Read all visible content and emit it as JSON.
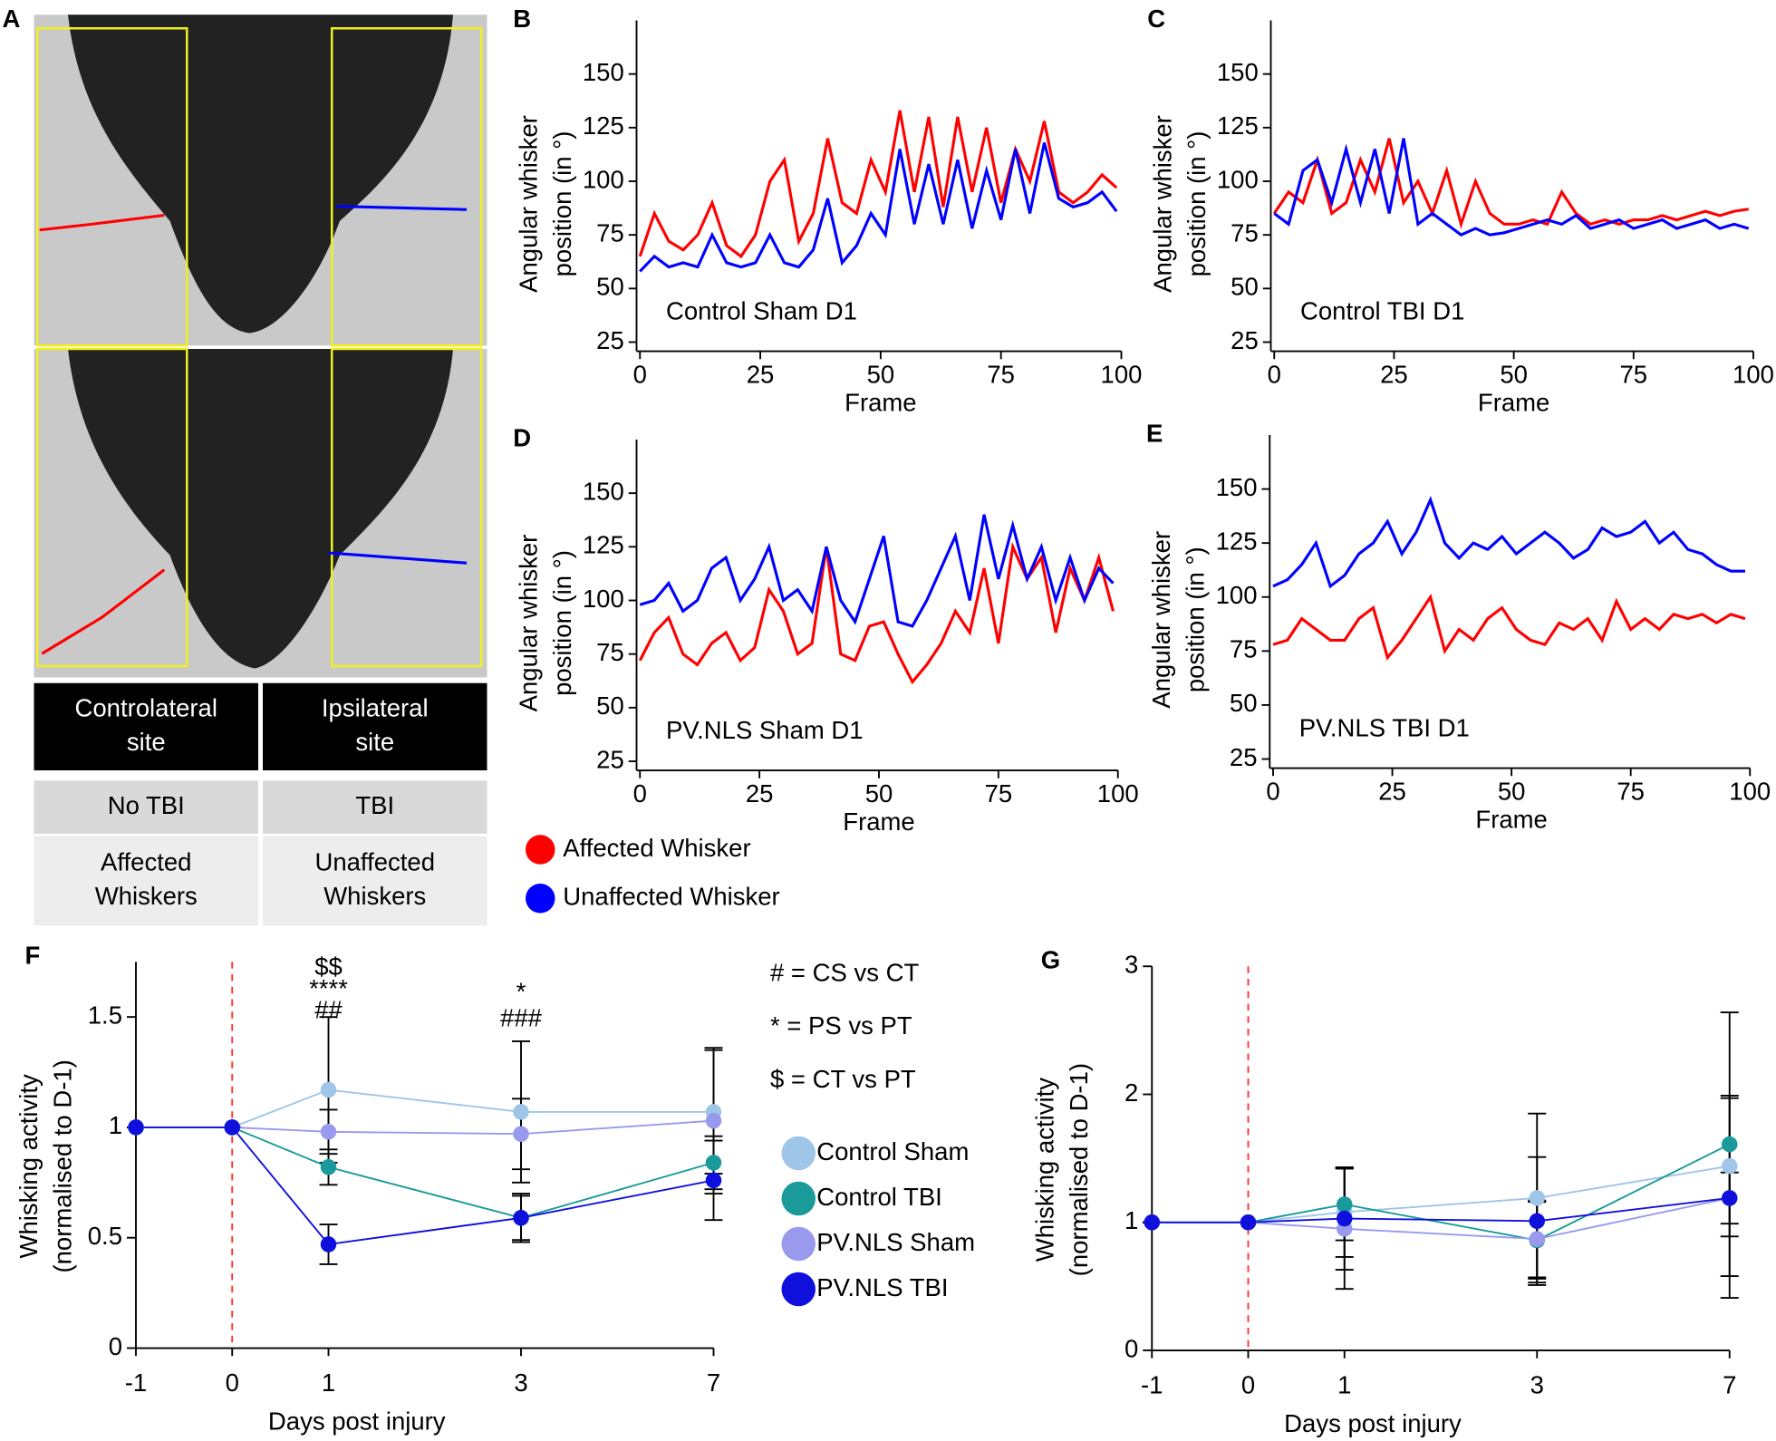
{
  "panel_a": {
    "label": "A",
    "table": {
      "rows": [
        [
          [
            "Controlateral",
            "site"
          ],
          [
            "Ipsilateral",
            "site"
          ]
        ],
        [
          [
            "No TBI"
          ],
          [
            "TBI"
          ]
        ],
        [
          [
            "Affected",
            "Whiskers"
          ],
          [
            "Unaffected",
            "Whiskers"
          ]
        ]
      ]
    }
  },
  "chart_data": [
    {
      "type": "line",
      "panel": "B",
      "annotation": "Control Sham D1",
      "xlabel": "Frame",
      "ylabel": [
        "Angular whisker",
        "position (in °)"
      ],
      "x": [
        0,
        3,
        6,
        9,
        12,
        15,
        18,
        21,
        24,
        27,
        30,
        33,
        36,
        39,
        42,
        45,
        48,
        51,
        54,
        57,
        60,
        63,
        66,
        69,
        72,
        75,
        78,
        81,
        84,
        87,
        90,
        93,
        96,
        99
      ],
      "xlim": [
        0,
        100
      ],
      "xticks": [
        0,
        25,
        50,
        75,
        100
      ],
      "ylim": [
        25,
        175
      ],
      "yticks": [
        25,
        50,
        75,
        100,
        125,
        150
      ],
      "series": [
        {
          "color": "#ff0000",
          "values": [
            65,
            85,
            72,
            68,
            75,
            90,
            70,
            65,
            75,
            100,
            110,
            72,
            85,
            120,
            90,
            85,
            110,
            95,
            133,
            95,
            130,
            88,
            130,
            95,
            125,
            90,
            115,
            100,
            128,
            95,
            90,
            95,
            103,
            97
          ]
        },
        {
          "color": "#0000ff",
          "values": [
            58,
            65,
            60,
            62,
            60,
            75,
            62,
            60,
            62,
            75,
            62,
            60,
            68,
            92,
            62,
            70,
            85,
            75,
            115,
            80,
            108,
            80,
            110,
            78,
            105,
            82,
            115,
            85,
            118,
            92,
            88,
            90,
            95,
            86
          ]
        }
      ]
    },
    {
      "type": "line",
      "panel": "C",
      "annotation": "Control TBI D1",
      "xlabel": "Frame",
      "ylabel": [
        "Angular whisker",
        "position (in °)"
      ],
      "x": [
        0,
        3,
        6,
        9,
        12,
        15,
        18,
        21,
        24,
        27,
        30,
        33,
        36,
        39,
        42,
        45,
        48,
        51,
        54,
        57,
        60,
        63,
        66,
        69,
        72,
        75,
        78,
        81,
        84,
        87,
        90,
        93,
        96,
        99
      ],
      "xlim": [
        0,
        100
      ],
      "xticks": [
        0,
        25,
        50,
        75,
        100
      ],
      "ylim": [
        25,
        175
      ],
      "yticks": [
        25,
        50,
        75,
        100,
        125,
        150
      ],
      "series": [
        {
          "color": "#ff0000",
          "values": [
            85,
            95,
            90,
            110,
            85,
            90,
            110,
            95,
            120,
            90,
            100,
            85,
            105,
            80,
            100,
            85,
            80,
            80,
            82,
            80,
            95,
            85,
            80,
            82,
            80,
            82,
            82,
            84,
            82,
            84,
            86,
            84,
            86,
            87
          ]
        },
        {
          "color": "#0000ff",
          "values": [
            85,
            80,
            105,
            110,
            90,
            115,
            90,
            115,
            85,
            120,
            80,
            85,
            80,
            75,
            78,
            75,
            76,
            78,
            80,
            82,
            80,
            84,
            78,
            80,
            82,
            78,
            80,
            82,
            78,
            80,
            82,
            78,
            80,
            78
          ]
        }
      ]
    },
    {
      "type": "line",
      "panel": "D",
      "annotation": "PV.NLS Sham D1",
      "xlabel": "Frame",
      "ylabel": [
        "Angular whisker",
        "position (in °)"
      ],
      "x": [
        0,
        3,
        6,
        9,
        12,
        15,
        18,
        21,
        24,
        27,
        30,
        33,
        36,
        39,
        42,
        45,
        48,
        51,
        54,
        57,
        60,
        63,
        66,
        69,
        72,
        75,
        78,
        81,
        84,
        87,
        90,
        93,
        96,
        99
      ],
      "xlim": [
        0,
        100
      ],
      "xticks": [
        0,
        25,
        50,
        75,
        100
      ],
      "ylim": [
        25,
        175
      ],
      "yticks": [
        25,
        50,
        75,
        100,
        125,
        150
      ],
      "series": [
        {
          "name": "Affected Whisker",
          "color": "#ff0000",
          "values": [
            72,
            85,
            92,
            75,
            70,
            80,
            85,
            72,
            78,
            105,
            95,
            75,
            80,
            125,
            75,
            72,
            88,
            90,
            75,
            62,
            70,
            80,
            95,
            85,
            115,
            80,
            125,
            110,
            120,
            85,
            115,
            100,
            120,
            95
          ]
        },
        {
          "name": "Unaffected Whisker",
          "color": "#0000ff",
          "values": [
            98,
            100,
            108,
            95,
            100,
            115,
            120,
            100,
            110,
            125,
            100,
            105,
            95,
            125,
            100,
            90,
            110,
            130,
            90,
            88,
            100,
            115,
            130,
            100,
            140,
            110,
            135,
            110,
            125,
            100,
            120,
            100,
            115,
            108
          ]
        }
      ]
    },
    {
      "type": "line",
      "panel": "E",
      "annotation": "PV.NLS TBI D1",
      "xlabel": "Frame",
      "ylabel": [
        "Angular whisker",
        "position (in °)"
      ],
      "x": [
        0,
        3,
        6,
        9,
        12,
        15,
        18,
        21,
        24,
        27,
        30,
        33,
        36,
        39,
        42,
        45,
        48,
        51,
        54,
        57,
        60,
        63,
        66,
        69,
        72,
        75,
        78,
        81,
        84,
        87,
        90,
        93,
        96,
        99
      ],
      "xlim": [
        0,
        100
      ],
      "xticks": [
        0,
        25,
        50,
        75,
        100
      ],
      "ylim": [
        25,
        175
      ],
      "yticks": [
        25,
        50,
        75,
        100,
        125,
        150
      ],
      "series": [
        {
          "color": "#ff0000",
          "values": [
            78,
            80,
            90,
            85,
            80,
            80,
            90,
            95,
            72,
            80,
            90,
            100,
            75,
            85,
            80,
            90,
            95,
            85,
            80,
            78,
            88,
            85,
            90,
            80,
            98,
            85,
            90,
            85,
            92,
            90,
            92,
            88,
            92,
            90
          ]
        },
        {
          "color": "#0000ff",
          "values": [
            105,
            108,
            115,
            125,
            105,
            110,
            120,
            125,
            135,
            120,
            130,
            145,
            125,
            118,
            125,
            122,
            128,
            120,
            125,
            130,
            125,
            118,
            122,
            132,
            128,
            130,
            135,
            125,
            130,
            122,
            120,
            115,
            112,
            112
          ]
        }
      ]
    },
    {
      "type": "errorline",
      "panel": "F",
      "xlabel": "Days post injury",
      "ylabel": [
        "Whisking activity",
        "(normalised to D-1)"
      ],
      "categories": [
        "-1",
        "0",
        "1",
        "3",
        "7"
      ],
      "ylim": [
        0,
        1.75
      ],
      "yticks": [
        0,
        0.5,
        1,
        1.5
      ],
      "significance": [
        [
          "$$",
          "****",
          "##"
        ],
        [
          "*",
          "###"
        ]
      ],
      "key": [
        "# = CS vs CT",
        "* = PS vs PT",
        "$ = CT vs PT"
      ],
      "series": [
        {
          "name": "Control Sham",
          "color": "#9fc5e8",
          "values": [
            1,
            1,
            1.17,
            1.07,
            1.07
          ],
          "errors": [
            0,
            0,
            0.33,
            0.32,
            0.28
          ]
        },
        {
          "name": "Control TBI",
          "color": "#1a9a9a",
          "values": [
            1,
            1,
            0.82,
            0.59,
            0.84
          ],
          "errors": [
            0,
            0,
            0.08,
            0.11,
            0.12
          ]
        },
        {
          "name": "PV.NLS Sham",
          "color": "#9999ee",
          "values": [
            1,
            1,
            0.98,
            0.97,
            1.03
          ],
          "errors": [
            0,
            0,
            0.1,
            0.16,
            0.33
          ]
        },
        {
          "name": "PV.NLS TBI",
          "color": "#1010dd",
          "values": [
            1,
            1,
            0.47,
            0.59,
            0.76
          ],
          "errors": [
            0,
            0,
            0.09,
            0.1,
            0.18
          ]
        }
      ]
    },
    {
      "type": "errorline",
      "panel": "G",
      "xlabel": "Days post injury",
      "ylabel": [
        "Whisking activity",
        "(normalised to D-1)"
      ],
      "categories": [
        "-1",
        "0",
        "1",
        "3",
        "7"
      ],
      "ylim": [
        0,
        3
      ],
      "yticks": [
        0,
        1,
        2,
        3
      ],
      "series": [
        {
          "color": "#9fc5e8",
          "values": [
            1,
            1,
            1.08,
            1.19,
            1.44
          ],
          "errors": [
            0,
            0,
            0.35,
            0.66,
            0.55
          ]
        },
        {
          "color": "#1a9a9a",
          "values": [
            1,
            1,
            1.14,
            0.86,
            1.61
          ],
          "errors": [
            0,
            0,
            0.28,
            0.3,
            1.03
          ]
        },
        {
          "color": "#9999ee",
          "values": [
            1,
            1,
            0.95,
            0.87,
            1.19
          ],
          "errors": [
            0,
            0,
            0.47,
            0.3,
            0.78
          ]
        },
        {
          "color": "#1010dd",
          "values": [
            1,
            1,
            1.03,
            1.01,
            1.19
          ],
          "errors": [
            0,
            0,
            0.4,
            0.5,
            0.2
          ]
        }
      ]
    }
  ]
}
